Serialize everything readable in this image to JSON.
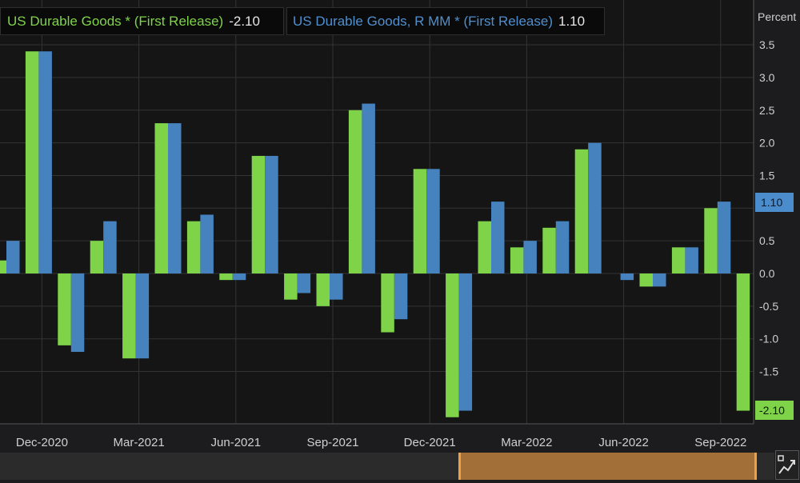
{
  "legend": [
    {
      "name": "US Durable Goods * (First Release)",
      "value": "-2.10"
    },
    {
      "name": "US Durable Goods, R MM * (First Release)",
      "value": "1.10"
    }
  ],
  "badges": {
    "series1_last": "-2.10",
    "series2_last": "1.10"
  },
  "colors": {
    "series1": "#7ed348",
    "series2": "#4682be",
    "background": "#1c1c1e",
    "navigator": "#b77b3c"
  },
  "corner_icon": "chart-settings-icon",
  "chart_data": {
    "type": "bar",
    "ylabel": "Percent",
    "ylim": [
      -2.2,
      3.8
    ],
    "y_ticks": [
      3.5,
      3.0,
      2.5,
      2.0,
      1.5,
      1.0,
      0.5,
      0.0,
      -0.5,
      -1.0,
      -1.5
    ],
    "y_tick_labels": [
      "3.5",
      "3.0",
      "2.5",
      "2.0",
      "1.5",
      "",
      "0.5",
      "0.0",
      "-0.5",
      "-1.0",
      "-1.5"
    ],
    "x_tick_labels": [
      "Dec-2020",
      "Mar-2021",
      "Jun-2021",
      "Sep-2021",
      "Dec-2021",
      "Mar-2022",
      "Jun-2022",
      "Sep-2022"
    ],
    "categories": [
      "Nov-2020",
      "Dec-2020",
      "Jan-2021",
      "Feb-2021",
      "Mar-2021",
      "Apr-2021",
      "May-2021",
      "Jun-2021",
      "Jul-2021",
      "Aug-2021",
      "Sep-2021",
      "Oct-2021",
      "Nov-2021",
      "Dec-2021",
      "Jan-2022",
      "Feb-2022",
      "Mar-2022",
      "Apr-2022",
      "May-2022",
      "Jun-2022",
      "Jul-2022",
      "Aug-2022",
      "Sep-2022",
      "Oct-2022"
    ],
    "grid": true,
    "legend_position": "top-left",
    "series": [
      {
        "name": "US Durable Goods * (First Release)",
        "values": [
          0.2,
          3.4,
          -1.1,
          0.5,
          -1.3,
          2.3,
          0.8,
          -0.1,
          1.8,
          -0.4,
          -0.5,
          2.5,
          -0.9,
          1.6,
          -2.2,
          0.8,
          0.4,
          0.7,
          1.9,
          null,
          -0.2,
          0.4,
          1.0,
          -2.1
        ]
      },
      {
        "name": "US Durable Goods, R MM * (First Release)",
        "values": [
          0.5,
          3.4,
          -1.2,
          0.8,
          -1.3,
          2.3,
          0.9,
          -0.1,
          1.8,
          -0.3,
          -0.4,
          2.6,
          -0.7,
          1.6,
          -2.1,
          1.1,
          0.5,
          0.8,
          2.0,
          -0.1,
          -0.2,
          0.4,
          1.1,
          null
        ]
      }
    ]
  }
}
